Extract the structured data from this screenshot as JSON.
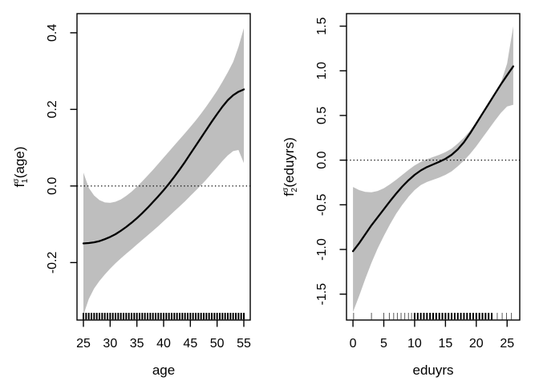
{
  "page": {
    "background": "#ffffff"
  },
  "chart_data": [
    {
      "type": "line",
      "name": "smooth-f1-age",
      "title": "",
      "xlabel": "age",
      "ylabel": {
        "base": "f",
        "sub": "1",
        "sup": "σ",
        "rest": "(age)"
      },
      "xlim": [
        23.8,
        56.2
      ],
      "ylim": [
        -0.35,
        0.45
      ],
      "xticks": [
        25,
        30,
        35,
        40,
        45,
        50,
        55
      ],
      "xtick_labels": [
        "25",
        "30",
        "35",
        "40",
        "45",
        "50",
        "55"
      ],
      "yticks": [
        -0.2,
        0.0,
        0.2,
        0.4
      ],
      "ytick_labels": [
        "-0.2",
        "0.0",
        "0.2",
        "0.4"
      ],
      "zero_line": 0.0,
      "grid": false,
      "legend": null,
      "band_color": "#bebebe",
      "line_color": "#000000",
      "x": [
        25,
        26,
        27,
        28,
        29,
        30,
        31,
        32,
        33,
        34,
        35,
        36,
        37,
        38,
        39,
        40,
        41,
        42,
        43,
        44,
        45,
        46,
        47,
        48,
        49,
        50,
        51,
        52,
        53,
        54,
        55
      ],
      "fit": [
        -0.15,
        -0.149,
        -0.147,
        -0.144,
        -0.139,
        -0.133,
        -0.126,
        -0.117,
        -0.107,
        -0.096,
        -0.084,
        -0.071,
        -0.057,
        -0.042,
        -0.027,
        -0.011,
        0.006,
        0.024,
        0.043,
        0.063,
        0.084,
        0.105,
        0.126,
        0.147,
        0.168,
        0.188,
        0.207,
        0.224,
        0.237,
        0.246,
        0.252
      ],
      "upper": [
        0.035,
        -0.005,
        -0.025,
        -0.037,
        -0.043,
        -0.044,
        -0.041,
        -0.035,
        -0.026,
        -0.015,
        -0.002,
        0.012,
        0.027,
        0.042,
        0.058,
        0.074,
        0.09,
        0.106,
        0.122,
        0.138,
        0.154,
        0.171,
        0.189,
        0.208,
        0.228,
        0.249,
        0.272,
        0.297,
        0.324,
        0.363,
        0.412
      ],
      "lower": [
        -0.337,
        -0.295,
        -0.268,
        -0.248,
        -0.231,
        -0.216,
        -0.202,
        -0.189,
        -0.177,
        -0.165,
        -0.153,
        -0.141,
        -0.129,
        -0.117,
        -0.105,
        -0.092,
        -0.079,
        -0.066,
        -0.053,
        -0.04,
        -0.026,
        -0.012,
        0.002,
        0.017,
        0.033,
        0.049,
        0.065,
        0.08,
        0.091,
        0.094,
        0.06
      ],
      "rug": [
        [
          25,
          2
        ],
        [
          25.5,
          2
        ],
        [
          26,
          2
        ],
        [
          26.5,
          2
        ],
        [
          27,
          2
        ],
        [
          27.5,
          2
        ],
        [
          28,
          2
        ],
        [
          28.5,
          2
        ],
        [
          29,
          2
        ],
        [
          29.5,
          2
        ],
        [
          30,
          2
        ],
        [
          30.5,
          2
        ],
        [
          31,
          2
        ],
        [
          31.5,
          2
        ],
        [
          32,
          2
        ],
        [
          32.5,
          2
        ],
        [
          33,
          2
        ],
        [
          33.5,
          2
        ],
        [
          34,
          2
        ],
        [
          34.5,
          2
        ],
        [
          35,
          2
        ],
        [
          35.5,
          2
        ],
        [
          36,
          2
        ],
        [
          36.5,
          2
        ],
        [
          37,
          2
        ],
        [
          37.5,
          2
        ],
        [
          38,
          2
        ],
        [
          38.5,
          2
        ],
        [
          39,
          2
        ],
        [
          39.5,
          2
        ],
        [
          40,
          2
        ],
        [
          40.5,
          2
        ],
        [
          41,
          2
        ],
        [
          41.5,
          2
        ],
        [
          42,
          2
        ],
        [
          42.5,
          2
        ],
        [
          43,
          2
        ],
        [
          43.5,
          2
        ],
        [
          44,
          2
        ],
        [
          44.5,
          2
        ],
        [
          45,
          2
        ],
        [
          45.5,
          2
        ],
        [
          46,
          2
        ],
        [
          46.5,
          2
        ],
        [
          47,
          2
        ],
        [
          47.5,
          2
        ],
        [
          48,
          2
        ],
        [
          48.5,
          2
        ],
        [
          49,
          2
        ],
        [
          49.5,
          2
        ],
        [
          50,
          2
        ],
        [
          50.5,
          2
        ],
        [
          51,
          2
        ],
        [
          51.5,
          2
        ],
        [
          52,
          2
        ],
        [
          52.5,
          2
        ],
        [
          53,
          2
        ],
        [
          53.5,
          2
        ],
        [
          54,
          2
        ],
        [
          54.5,
          2
        ],
        [
          55,
          2
        ]
      ]
    },
    {
      "type": "line",
      "name": "smooth-f2-eduyrs",
      "title": "",
      "xlabel": "eduyrs",
      "ylabel": {
        "base": "f",
        "sub": "2",
        "sup": "σ",
        "rest": "(eduyrs)"
      },
      "xlim": [
        -1.05,
        27.05
      ],
      "ylim": [
        -1.79,
        1.64
      ],
      "xticks": [
        0,
        5,
        10,
        15,
        20,
        25
      ],
      "xtick_labels": [
        "0",
        "5",
        "10",
        "15",
        "20",
        "25"
      ],
      "yticks": [
        -1.5,
        -1.0,
        -0.5,
        0.0,
        0.5,
        1.0,
        1.5
      ],
      "ytick_labels": [
        "-1.5",
        "-1.0",
        "-0.5",
        "0.0",
        "0.5",
        "1.0",
        "1.5"
      ],
      "zero_line": 0.0,
      "grid": false,
      "legend": null,
      "band_color": "#bebebe",
      "line_color": "#000000",
      "x": [
        0,
        1,
        2,
        3,
        4,
        5,
        6,
        7,
        8,
        9,
        10,
        11,
        12,
        13,
        14,
        15,
        16,
        17,
        18,
        19,
        20,
        21,
        22,
        23,
        24,
        25,
        26
      ],
      "fit": [
        -1.02,
        -0.93,
        -0.83,
        -0.73,
        -0.64,
        -0.55,
        -0.46,
        -0.375,
        -0.295,
        -0.225,
        -0.165,
        -0.115,
        -0.078,
        -0.048,
        -0.018,
        0.015,
        0.06,
        0.12,
        0.2,
        0.3,
        0.41,
        0.52,
        0.63,
        0.74,
        0.85,
        0.95,
        1.05
      ],
      "upper": [
        -0.3,
        -0.335,
        -0.355,
        -0.36,
        -0.345,
        -0.315,
        -0.27,
        -0.22,
        -0.165,
        -0.11,
        -0.06,
        -0.02,
        0.01,
        0.035,
        0.06,
        0.09,
        0.13,
        0.185,
        0.25,
        0.33,
        0.425,
        0.525,
        0.63,
        0.74,
        0.87,
        1.08,
        1.5
      ],
      "lower": [
        -1.7,
        -1.52,
        -1.33,
        -1.15,
        -0.99,
        -0.85,
        -0.72,
        -0.6,
        -0.5,
        -0.41,
        -0.335,
        -0.28,
        -0.245,
        -0.22,
        -0.195,
        -0.165,
        -0.125,
        -0.07,
        -0.005,
        0.07,
        0.155,
        0.25,
        0.345,
        0.44,
        0.53,
        0.6,
        0.62
      ],
      "rug": [
        [
          0.1,
          1
        ],
        [
          3,
          1
        ],
        [
          5,
          1
        ],
        [
          5.9,
          1
        ],
        [
          6.6,
          1
        ],
        [
          7.2,
          1
        ],
        [
          7.8,
          1
        ],
        [
          8.4,
          1
        ],
        [
          9,
          1
        ],
        [
          9.5,
          1
        ],
        [
          10,
          2
        ],
        [
          10.5,
          2
        ],
        [
          11,
          2
        ],
        [
          11.5,
          2
        ],
        [
          12,
          2
        ],
        [
          12.5,
          2
        ],
        [
          13,
          2
        ],
        [
          13.5,
          2
        ],
        [
          14,
          2
        ],
        [
          14.5,
          2
        ],
        [
          15,
          2
        ],
        [
          15.5,
          2
        ],
        [
          16,
          2
        ],
        [
          16.5,
          2
        ],
        [
          17,
          2
        ],
        [
          17.5,
          2
        ],
        [
          18,
          2
        ],
        [
          18.5,
          2
        ],
        [
          19,
          2
        ],
        [
          19.5,
          2
        ],
        [
          20,
          2
        ],
        [
          20.5,
          2
        ],
        [
          21,
          2
        ],
        [
          21.5,
          2
        ],
        [
          22,
          2
        ],
        [
          22.5,
          2
        ],
        [
          23.4,
          1
        ],
        [
          24.2,
          1
        ],
        [
          24.9,
          1
        ],
        [
          25.7,
          1
        ]
      ]
    }
  ]
}
